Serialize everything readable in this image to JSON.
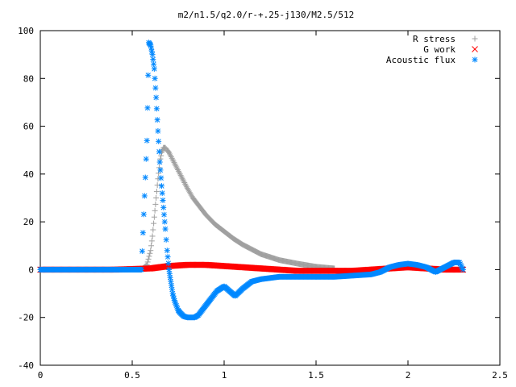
{
  "chart_data": {
    "type": "scatter",
    "title": "m2/n1.5/q2.0/r-+.25-j130/M2.5/512",
    "xlabel": "",
    "ylabel": "",
    "xlim": [
      0,
      2.5
    ],
    "ylim": [
      -40,
      100
    ],
    "xticks": [
      0,
      0.5,
      1,
      1.5,
      2,
      2.5
    ],
    "yticks": [
      -40,
      -20,
      0,
      20,
      40,
      60,
      80,
      100
    ],
    "xtick_labels": [
      "0",
      "0.5",
      "1",
      "1.5",
      "2",
      "2.5"
    ],
    "ytick_labels": [
      "-40",
      "-20",
      "0",
      "20",
      "40",
      "60",
      "80",
      "100"
    ],
    "grid": false,
    "legend_position": "top-right",
    "series": [
      {
        "name": "R stress",
        "marker": "plus",
        "color": "#a0a0a0",
        "x": [
          0.0,
          0.1,
          0.2,
          0.3,
          0.4,
          0.5,
          0.55,
          0.58,
          0.6,
          0.61,
          0.62,
          0.63,
          0.64,
          0.65,
          0.66,
          0.67,
          0.68,
          0.69,
          0.7,
          0.72,
          0.74,
          0.76,
          0.78,
          0.8,
          0.83,
          0.86,
          0.9,
          0.95,
          1.0,
          1.05,
          1.1,
          1.15,
          1.2,
          1.3,
          1.4,
          1.5,
          1.6
        ],
        "y": [
          0,
          0,
          0,
          0,
          0,
          0,
          0,
          2,
          8,
          14,
          22,
          30,
          38,
          45,
          49,
          51,
          51,
          50,
          49,
          46,
          43,
          40,
          37,
          34,
          30,
          27,
          23,
          19,
          16,
          13,
          10.5,
          8.5,
          6.5,
          4,
          2.5,
          1.2,
          0.5
        ]
      },
      {
        "name": "G work",
        "marker": "cross",
        "color": "#ff0000",
        "x": [
          0.0,
          0.2,
          0.4,
          0.6,
          0.7,
          0.8,
          0.9,
          1.0,
          1.1,
          1.2,
          1.3,
          1.4,
          1.5,
          1.6,
          1.7,
          1.8,
          1.9,
          2.0,
          2.1,
          2.2,
          2.3
        ],
        "y": [
          0,
          0,
          0,
          0.5,
          1.5,
          2,
          2,
          1.5,
          1,
          0.5,
          0,
          -0.5,
          -0.5,
          -0.5,
          -0.5,
          0,
          0.5,
          1,
          0.5,
          0,
          0
        ]
      },
      {
        "name": "Acoustic flux",
        "marker": "star",
        "color": "#0088ff",
        "x": [
          0.0,
          0.1,
          0.2,
          0.3,
          0.4,
          0.5,
          0.55,
          0.58,
          0.59,
          0.6,
          0.61,
          0.62,
          0.63,
          0.64,
          0.65,
          0.66,
          0.67,
          0.68,
          0.69,
          0.7,
          0.71,
          0.72,
          0.73,
          0.74,
          0.75,
          0.76,
          0.78,
          0.8,
          0.82,
          0.84,
          0.86,
          0.88,
          0.9,
          0.93,
          0.96,
          1.0,
          1.03,
          1.06,
          1.1,
          1.15,
          1.2,
          1.3,
          1.4,
          1.5,
          1.6,
          1.7,
          1.8,
          1.85,
          1.9,
          1.95,
          2.0,
          2.05,
          2.1,
          2.15,
          2.2,
          2.25,
          2.28,
          2.3
        ],
        "y": [
          0,
          0,
          0,
          0,
          0,
          0,
          0,
          54,
          95,
          94,
          90,
          84,
          72,
          58,
          45,
          35,
          26,
          17,
          8,
          0,
          -5,
          -10,
          -13,
          -15,
          -17,
          -18,
          -19.5,
          -20,
          -20,
          -20,
          -19,
          -17,
          -15,
          -12,
          -9,
          -7,
          -9,
          -11,
          -8,
          -5,
          -4,
          -3,
          -3,
          -3,
          -3,
          -2.5,
          -2,
          -1,
          1,
          2,
          2.5,
          2,
          1,
          -1,
          1,
          3,
          3,
          0
        ]
      }
    ]
  }
}
